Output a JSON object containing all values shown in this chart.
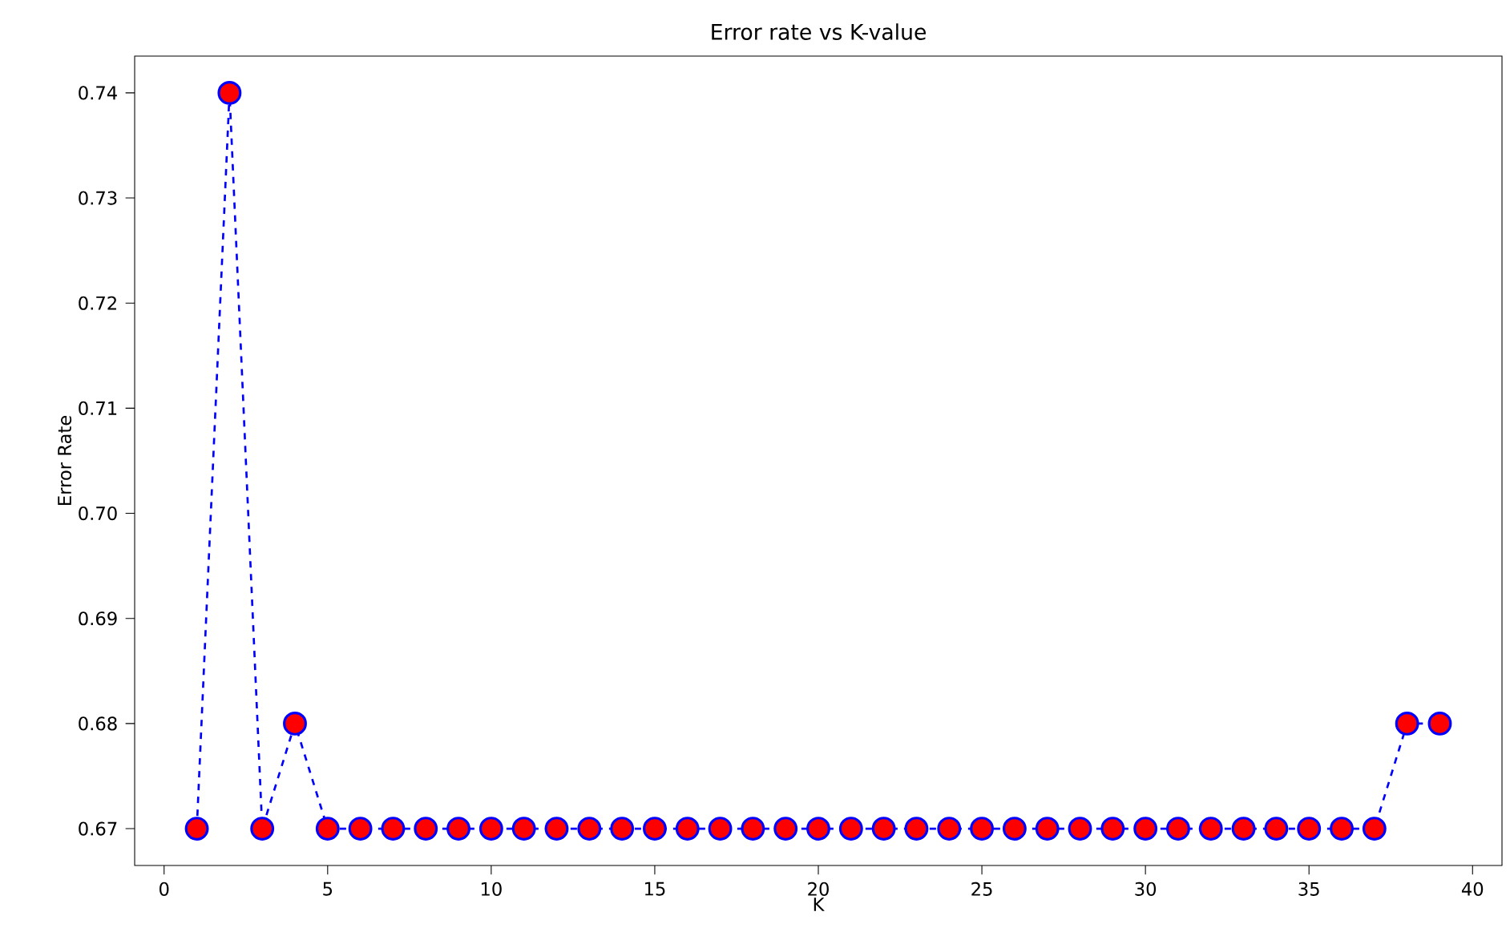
{
  "chart_data": {
    "type": "line",
    "title": "Error rate vs K-value",
    "xlabel": "K",
    "ylabel": "Error Rate",
    "x": [
      1,
      2,
      3,
      4,
      5,
      6,
      7,
      8,
      9,
      10,
      11,
      12,
      13,
      14,
      15,
      16,
      17,
      18,
      19,
      20,
      21,
      22,
      23,
      24,
      25,
      26,
      27,
      28,
      29,
      30,
      31,
      32,
      33,
      34,
      35,
      36,
      37,
      38,
      39
    ],
    "values": [
      0.67,
      0.74,
      0.67,
      0.68,
      0.67,
      0.67,
      0.67,
      0.67,
      0.67,
      0.67,
      0.67,
      0.67,
      0.67,
      0.67,
      0.67,
      0.67,
      0.67,
      0.67,
      0.67,
      0.67,
      0.67,
      0.67,
      0.67,
      0.67,
      0.67,
      0.67,
      0.67,
      0.67,
      0.67,
      0.67,
      0.67,
      0.67,
      0.67,
      0.67,
      0.67,
      0.67,
      0.67,
      0.68,
      0.68
    ],
    "color": "#0000ff",
    "colors": [
      "#ff0000",
      "#ff0000",
      "#ff0000",
      "#ff0000",
      "#ff0000",
      "#ff0000",
      "#ff0000",
      "#ff0000",
      "#ff0000",
      "#ff0000",
      "#ff0000",
      "#ff0000",
      "#ff0000",
      "#ff0000",
      "#ff0000",
      "#ff0000",
      "#ff0000",
      "#ff0000",
      "#ff0000",
      "#ff0000",
      "#ff0000",
      "#ff0000",
      "#ff0000",
      "#ff0000",
      "#ff0000",
      "#ff0000",
      "#ff0000",
      "#ff0000",
      "#ff0000",
      "#ff0000",
      "#ff0000",
      "#ff0000",
      "#ff0000",
      "#ff0000",
      "#ff0000",
      "#ff0000",
      "#ff0000",
      "#ff0000",
      "#ff0000"
    ],
    "marker": "circle",
    "line_style": "dashed",
    "xlim": [
      -0.9,
      40.9
    ],
    "ylim": [
      0.6665,
      0.7435
    ],
    "xticks": [
      0,
      5,
      10,
      15,
      20,
      25,
      30,
      35,
      40
    ],
    "yticks": [
      0.67,
      0.68,
      0.69,
      {
        "value": 0.7,
        "label": "0.70"
      },
      0.71,
      0.72,
      0.73,
      0.74
    ]
  }
}
